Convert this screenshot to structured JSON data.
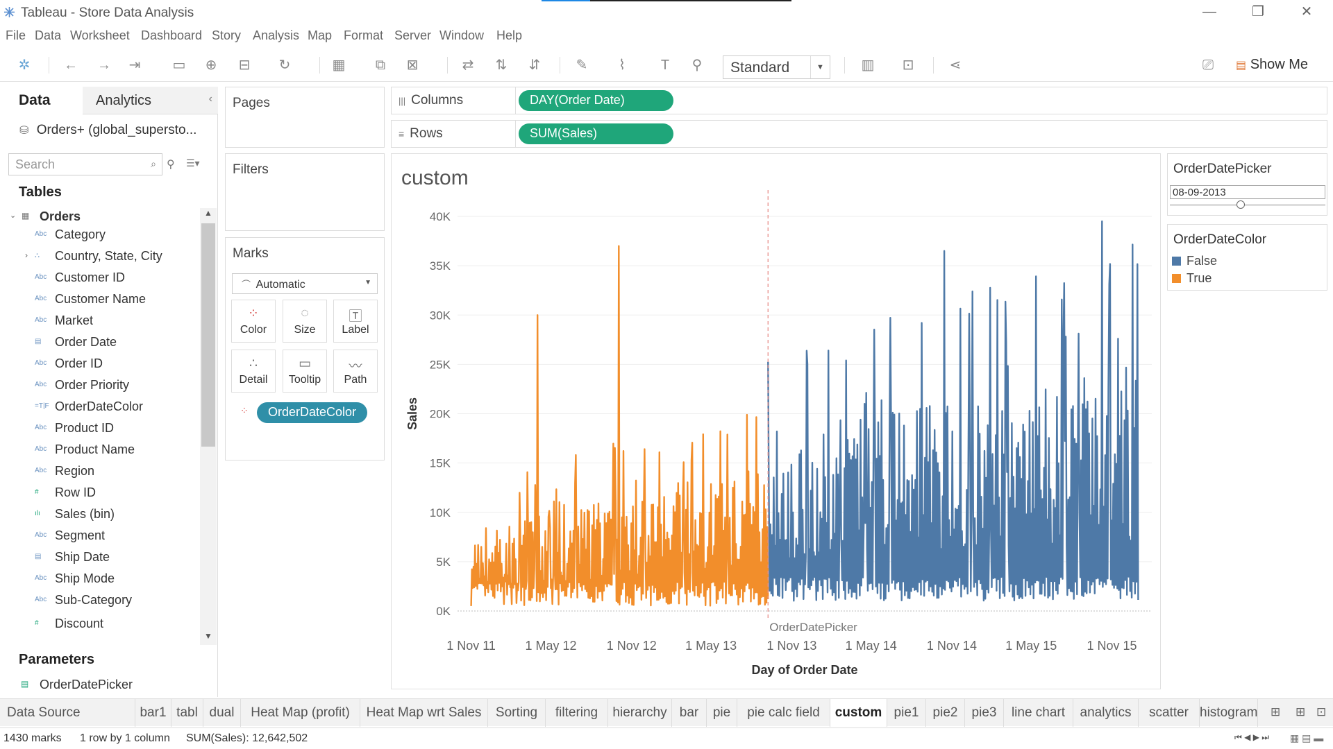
{
  "window": {
    "title": "Tableau - Store Data Analysis"
  },
  "menu": [
    "File",
    "Data",
    "Worksheet",
    "Dashboard",
    "Story",
    "Analysis",
    "Map",
    "Format",
    "Server",
    "Window",
    "Help"
  ],
  "toolbar": {
    "fit": "Standard",
    "show_me": "Show Me"
  },
  "data_pane": {
    "tab_data": "Data",
    "tab_analytics": "Analytics",
    "datasource": "Orders+ (global_supersto...",
    "search_placeholder": "Search",
    "tables_heading": "Tables",
    "table_name": "Orders",
    "fields": [
      {
        "icon": "Abc",
        "label": "Category"
      },
      {
        "icon": "hier",
        "label": "Country, State, City"
      },
      {
        "icon": "Abc",
        "label": "Customer ID"
      },
      {
        "icon": "Abc",
        "label": "Customer Name"
      },
      {
        "icon": "Abc",
        "label": "Market"
      },
      {
        "icon": "date",
        "label": "Order Date"
      },
      {
        "icon": "Abc",
        "label": "Order ID"
      },
      {
        "icon": "Abc",
        "label": "Order Priority"
      },
      {
        "icon": "=T|F",
        "label": "OrderDateColor"
      },
      {
        "icon": "Abc",
        "label": "Product ID"
      },
      {
        "icon": "Abc",
        "label": "Product Name"
      },
      {
        "icon": "Abc",
        "label": "Region"
      },
      {
        "icon": "#",
        "label": "Row ID"
      },
      {
        "icon": "bin",
        "label": "Sales (bin)"
      },
      {
        "icon": "Abc",
        "label": "Segment"
      },
      {
        "icon": "date",
        "label": "Ship Date"
      },
      {
        "icon": "Abc",
        "label": "Ship Mode"
      },
      {
        "icon": "Abc",
        "label": "Sub-Category"
      },
      {
        "icon": "#",
        "label": "Discount"
      }
    ],
    "parameters_heading": "Parameters",
    "parameter": "OrderDatePicker"
  },
  "cards": {
    "pages": "Pages",
    "filters": "Filters",
    "marks": "Marks",
    "mark_type": "Automatic",
    "mark_buttons": [
      "Color",
      "Size",
      "Label",
      "Detail",
      "Tooltip",
      "Path"
    ],
    "color_pill": "OrderDateColor"
  },
  "shelves": {
    "columns_label": "Columns",
    "columns_pill": "DAY(Order Date)",
    "rows_label": "Rows",
    "rows_pill": "SUM(Sales)"
  },
  "legends": {
    "picker_title": "OrderDatePicker",
    "picker_value": "08-09-2013",
    "color_title": "OrderDateColor",
    "items": [
      {
        "label": "False",
        "color": "#4e79a7"
      },
      {
        "label": "True",
        "color": "#f28e2b"
      }
    ]
  },
  "sheet_tabs": [
    "Data Source",
    "bar1",
    "tabl",
    "dual",
    "Heat Map (profit)",
    "Heat Map wrt Sales",
    "Sorting",
    "filtering",
    "hierarchy",
    "bar",
    "pie",
    "pie calc field",
    "custom",
    "pie1",
    "pie2",
    "pie3",
    "line chart",
    "analytics",
    "scatter",
    "histogram"
  ],
  "active_tab": "custom",
  "status": {
    "marks": "1430 marks",
    "dims": "1 row by 1 column",
    "sum": "SUM(Sales): 12,642,502"
  },
  "chart_data": {
    "type": "line",
    "title": "custom",
    "xlabel": "Day of Order Date",
    "ylabel": "Sales",
    "x_ticks": [
      "1 Nov 11",
      "1 May 12",
      "1 Nov 12",
      "1 May 13",
      "1 Nov 13",
      "1 May 14",
      "1 Nov 14",
      "1 May 15",
      "1 Nov 15"
    ],
    "y_ticks": [
      "0K",
      "5K",
      "10K",
      "15K",
      "20K",
      "25K",
      "30K",
      "35K",
      "40K"
    ],
    "ylim": [
      0,
      40000
    ],
    "reference_line": {
      "label": "OrderDatePicker",
      "value": "08-09-2013"
    },
    "series": [
      {
        "name": "True",
        "color": "#f28e2b",
        "x_range": [
          "2011-11-01",
          "2013-09-08"
        ],
        "peaks": [
          {
            "x": "2012-04-01",
            "y": 30000
          },
          {
            "x": "2012-10-01",
            "y": 37000
          }
        ],
        "typical_range": [
          500,
          15000
        ]
      },
      {
        "name": "False",
        "color": "#4e79a7",
        "x_range": [
          "2013-09-08",
          "2015-12-31"
        ],
        "peaks": [
          {
            "x": "2014-10-15",
            "y": 36500
          },
          {
            "x": "2015-10-10",
            "y": 39500
          }
        ],
        "typical_range": [
          1000,
          25000
        ]
      }
    ]
  }
}
